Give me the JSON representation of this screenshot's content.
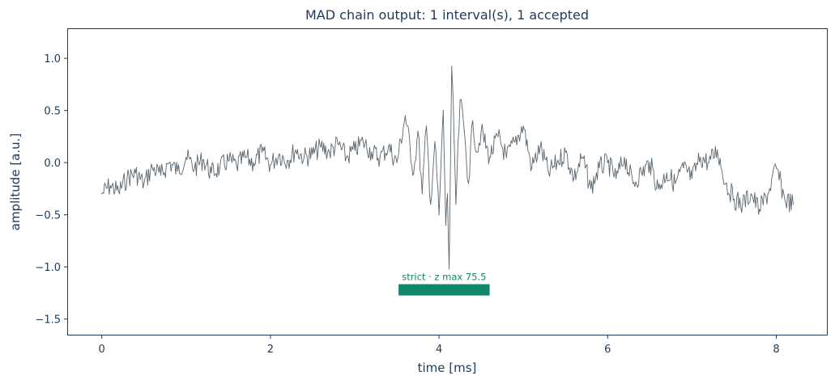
{
  "chart_data": {
    "type": "line",
    "title": "MAD chain output: 1 interval(s), 1 accepted",
    "xlabel": "time [ms]",
    "ylabel": "amplitude [a.u.]",
    "xlim": [
      -0.4,
      8.6
    ],
    "ylim": [
      -1.65,
      1.28
    ],
    "xticks": [
      0,
      2,
      4,
      6,
      8
    ],
    "xtick_labels": [
      "0",
      "2",
      "4",
      "6",
      "8"
    ],
    "yticks": [
      1.0,
      0.5,
      0.0,
      -0.5,
      -1.0,
      -1.5
    ],
    "ytick_labels": [
      "1.0",
      "0.5",
      "0.0",
      "−0.5",
      "−1.0",
      "−1.5"
    ],
    "grid": false,
    "series": [
      {
        "color": "#5b6770",
        "x": [
          0.0,
          0.1,
          0.2,
          0.3,
          0.4,
          0.5,
          0.6,
          0.7,
          0.8,
          0.9,
          1.0,
          1.1,
          1.2,
          1.3,
          1.4,
          1.5,
          1.6,
          1.7,
          1.8,
          1.9,
          2.0,
          2.1,
          2.2,
          2.3,
          2.4,
          2.5,
          2.6,
          2.7,
          2.8,
          2.9,
          3.0,
          3.1,
          3.2,
          3.3,
          3.4,
          3.5,
          3.6,
          3.7,
          3.75,
          3.8,
          3.85,
          3.9,
          3.95,
          4.0,
          4.05,
          4.08,
          4.1,
          4.12,
          4.15,
          4.18,
          4.2,
          4.25,
          4.3,
          4.35,
          4.4,
          4.45,
          4.5,
          4.6,
          4.7,
          4.8,
          4.9,
          5.0,
          5.1,
          5.2,
          5.3,
          5.4,
          5.5,
          5.6,
          5.7,
          5.8,
          5.9,
          6.0,
          6.1,
          6.2,
          6.3,
          6.4,
          6.5,
          6.6,
          6.7,
          6.8,
          6.9,
          7.0,
          7.1,
          7.2,
          7.3,
          7.4,
          7.5,
          7.6,
          7.7,
          7.8,
          7.9,
          8.0,
          8.1,
          8.2
        ],
        "y": [
          -0.3,
          -0.22,
          -0.28,
          -0.15,
          -0.1,
          -0.2,
          -0.05,
          -0.12,
          0.0,
          -0.08,
          0.05,
          -0.05,
          0.03,
          -0.1,
          -0.05,
          0.02,
          -0.03,
          0.05,
          0.0,
          0.1,
          -0.02,
          0.08,
          0.02,
          0.12,
          0.05,
          0.08,
          0.15,
          0.1,
          0.18,
          0.05,
          0.12,
          0.2,
          0.1,
          0.05,
          0.15,
          0.0,
          0.45,
          -0.1,
          0.3,
          -0.3,
          0.35,
          -0.4,
          0.2,
          -0.5,
          0.5,
          -0.6,
          -0.3,
          -1.02,
          0.92,
          0.2,
          -0.4,
          0.6,
          0.3,
          -0.2,
          0.4,
          0.1,
          0.3,
          0.05,
          0.25,
          0.05,
          0.2,
          0.35,
          -0.05,
          0.15,
          -0.1,
          0.0,
          0.1,
          -0.15,
          0.05,
          -0.25,
          -0.05,
          0.0,
          -0.15,
          0.05,
          -0.2,
          -0.1,
          0.0,
          -0.25,
          -0.1,
          -0.2,
          -0.05,
          -0.15,
          0.05,
          0.0,
          0.12,
          -0.2,
          -0.35,
          -0.4,
          -0.3,
          -0.45,
          -0.3,
          -0.05,
          -0.35,
          -0.4
        ]
      }
    ],
    "intervals": [
      {
        "x_start": 3.52,
        "x_end": 4.6,
        "y_center": -1.22,
        "color": "#11876a",
        "label": "strict · z max 75.5"
      }
    ]
  }
}
